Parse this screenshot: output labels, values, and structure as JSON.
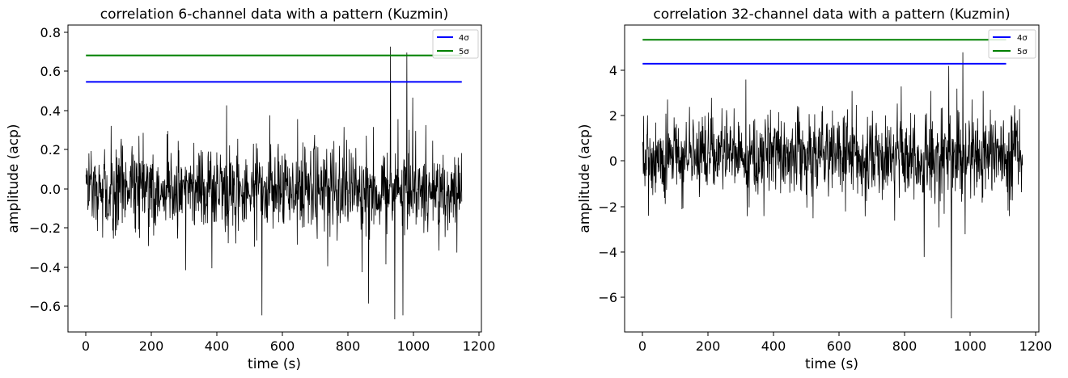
{
  "charts": [
    {
      "title": "correlation 6-channel data with a pattern (Kuzmin)",
      "xlabel": "time (s)",
      "ylabel": "amplitude (acp)",
      "xticks": [
        "0",
        "200",
        "400",
        "600",
        "800",
        "1000",
        "1200"
      ],
      "yticks": [
        "0.8",
        "0.6",
        "0.4",
        "0.2",
        "0.0",
        "−0.2",
        "−0.4",
        "−0.6"
      ],
      "legend": [
        "4σ",
        "5σ"
      ]
    },
    {
      "title": "correlation 32-channel data with a pattern (Kuzmin)",
      "xlabel": "time (s)",
      "ylabel": "amplitude (acp)",
      "xticks": [
        "0",
        "200",
        "400",
        "600",
        "800",
        "1000",
        "1200"
      ],
      "yticks": [
        "4",
        "2",
        "0",
        "−2",
        "−4",
        "−6"
      ],
      "legend": [
        "4σ",
        "5σ"
      ]
    }
  ],
  "chart_data": [
    {
      "type": "line",
      "title": "correlation 6-channel data with a pattern (Kuzmin)",
      "xlabel": "time (s)",
      "ylabel": "amplitude (acp)",
      "xlim": [
        -55,
        1210
      ],
      "ylim": [
        -0.725,
        0.84
      ],
      "xticks": [
        0,
        200,
        400,
        600,
        800,
        1000,
        1200
      ],
      "yticks": [
        0.8,
        0.6,
        0.4,
        0.2,
        0.0,
        -0.2,
        -0.4,
        -0.6
      ],
      "legend_position": "top-right",
      "grid": false,
      "thresholds": [
        {
          "name": "4σ",
          "value": 0.55,
          "x": [
            0,
            1150
          ],
          "color": "#0000ff"
        },
        {
          "name": "5σ",
          "value": 0.685,
          "x": [
            0,
            1150
          ],
          "color": "#008000"
        }
      ],
      "signal": {
        "color": "#000000",
        "x_range": [
          0,
          1150
        ],
        "num_points": 1150,
        "noise_std": 0.12,
        "mean": 0.0,
        "seed": 6,
        "spikes": [
          {
            "x": 35,
            "y": -0.21
          },
          {
            "x": 108,
            "y": 0.26
          },
          {
            "x": 175,
            "y": 0.29
          },
          {
            "x": 250,
            "y": 0.3
          },
          {
            "x": 305,
            "y": -0.41
          },
          {
            "x": 385,
            "y": -0.4
          },
          {
            "x": 430,
            "y": 0.43
          },
          {
            "x": 538,
            "y": -0.64
          },
          {
            "x": 562,
            "y": 0.38
          },
          {
            "x": 648,
            "y": 0.36
          },
          {
            "x": 700,
            "y": 0.28
          },
          {
            "x": 740,
            "y": -0.39
          },
          {
            "x": 790,
            "y": 0.32
          },
          {
            "x": 845,
            "y": -0.42
          },
          {
            "x": 865,
            "y": -0.58
          },
          {
            "x": 880,
            "y": 0.32
          },
          {
            "x": 918,
            "y": -0.38
          },
          {
            "x": 932,
            "y": 0.73
          },
          {
            "x": 945,
            "y": -0.66
          },
          {
            "x": 955,
            "y": 0.36
          },
          {
            "x": 970,
            "y": -0.64
          },
          {
            "x": 982,
            "y": 0.7
          },
          {
            "x": 1000,
            "y": 0.47
          },
          {
            "x": 1040,
            "y": 0.33
          },
          {
            "x": 1080,
            "y": -0.31
          },
          {
            "x": 1135,
            "y": -0.32
          }
        ]
      }
    },
    {
      "type": "line",
      "title": "correlation 32-channel data with a pattern (Kuzmin)",
      "xlabel": "time (s)",
      "ylabel": "amplitude (acp)",
      "xlim": [
        -55,
        1210
      ],
      "ylim": [
        -7.5,
        6.0
      ],
      "xticks": [
        0,
        200,
        400,
        600,
        800,
        1000,
        1200
      ],
      "yticks": [
        4,
        2,
        0,
        -2,
        -4,
        -6
      ],
      "legend_position": "top-right",
      "grid": false,
      "thresholds": [
        {
          "name": "4σ",
          "value": 4.3,
          "x": [
            0,
            1110
          ],
          "color": "#0000ff"
        },
        {
          "name": "5σ",
          "value": 5.35,
          "x": [
            0,
            1110
          ],
          "color": "#008000"
        }
      ],
      "signal": {
        "color": "#000000",
        "x_range": [
          0,
          1160
        ],
        "num_points": 1160,
        "noise_std": 1.1,
        "mean": 0.2,
        "seed": 32,
        "spikes": [
          {
            "x": 120,
            "y": -2.1
          },
          {
            "x": 210,
            "y": 2.8
          },
          {
            "x": 315,
            "y": 3.6
          },
          {
            "x": 370,
            "y": -2.4
          },
          {
            "x": 520,
            "y": -2.5
          },
          {
            "x": 620,
            "y": -2.2
          },
          {
            "x": 640,
            "y": 3.1
          },
          {
            "x": 770,
            "y": -2.6
          },
          {
            "x": 790,
            "y": 3.3
          },
          {
            "x": 860,
            "y": -4.2
          },
          {
            "x": 880,
            "y": 3.1
          },
          {
            "x": 905,
            "y": -2.9
          },
          {
            "x": 935,
            "y": 4.2
          },
          {
            "x": 943,
            "y": -6.9
          },
          {
            "x": 960,
            "y": 3.2
          },
          {
            "x": 978,
            "y": 4.8
          },
          {
            "x": 985,
            "y": -3.2
          },
          {
            "x": 1040,
            "y": 3.1
          },
          {
            "x": 1120,
            "y": -2.4
          }
        ]
      }
    }
  ]
}
